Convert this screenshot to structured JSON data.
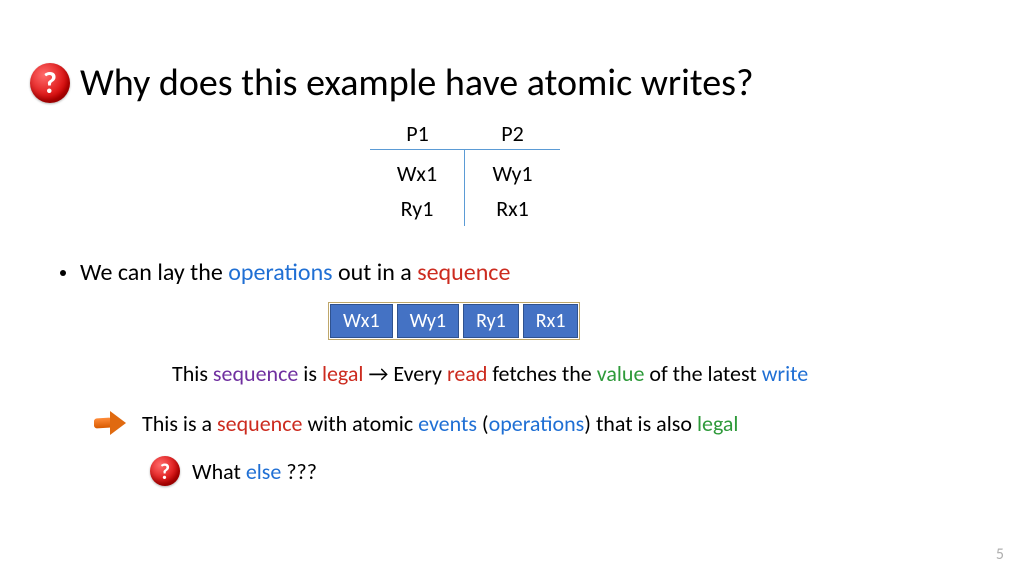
{
  "title": "Why does this example have atomic writes?",
  "table": {
    "headers": [
      "P1",
      "P2"
    ],
    "col1": [
      "Wx1",
      "Ry1"
    ],
    "col2": [
      "Wy1",
      "Rx1"
    ]
  },
  "bullet": {
    "pre": "We can lay the ",
    "operations": "operations",
    "mid": " out in a ",
    "sequence": "sequence"
  },
  "seq": [
    "Wx1",
    "Wy1",
    "Ry1",
    "Rx1"
  ],
  "line1": {
    "t1": "This ",
    "sequence": "sequence",
    "t2": " is ",
    "legal": "legal",
    "arrow": " → ",
    "t3": "Every ",
    "read": "read",
    "t4": " fetches the ",
    "value": "value",
    "t5": " of the latest ",
    "write": "write"
  },
  "line2": {
    "t1": "This is a ",
    "sequence": "sequence",
    "t2": " with atomic ",
    "events": "events",
    "t3": " (",
    "operations": "operations",
    "t4": ") that is also ",
    "legal": "legal"
  },
  "line3": {
    "t1": "What ",
    "else": "else",
    "t2": " ???"
  },
  "slidenum": "5",
  "colors": {
    "blue": "#1f6fd4",
    "red": "#cc2b1f",
    "green": "#2e9a3a",
    "purple": "#7030a0",
    "box_fill": "#4472c4",
    "box_border": "#2f528f",
    "divider": "#5b9bd5"
  }
}
